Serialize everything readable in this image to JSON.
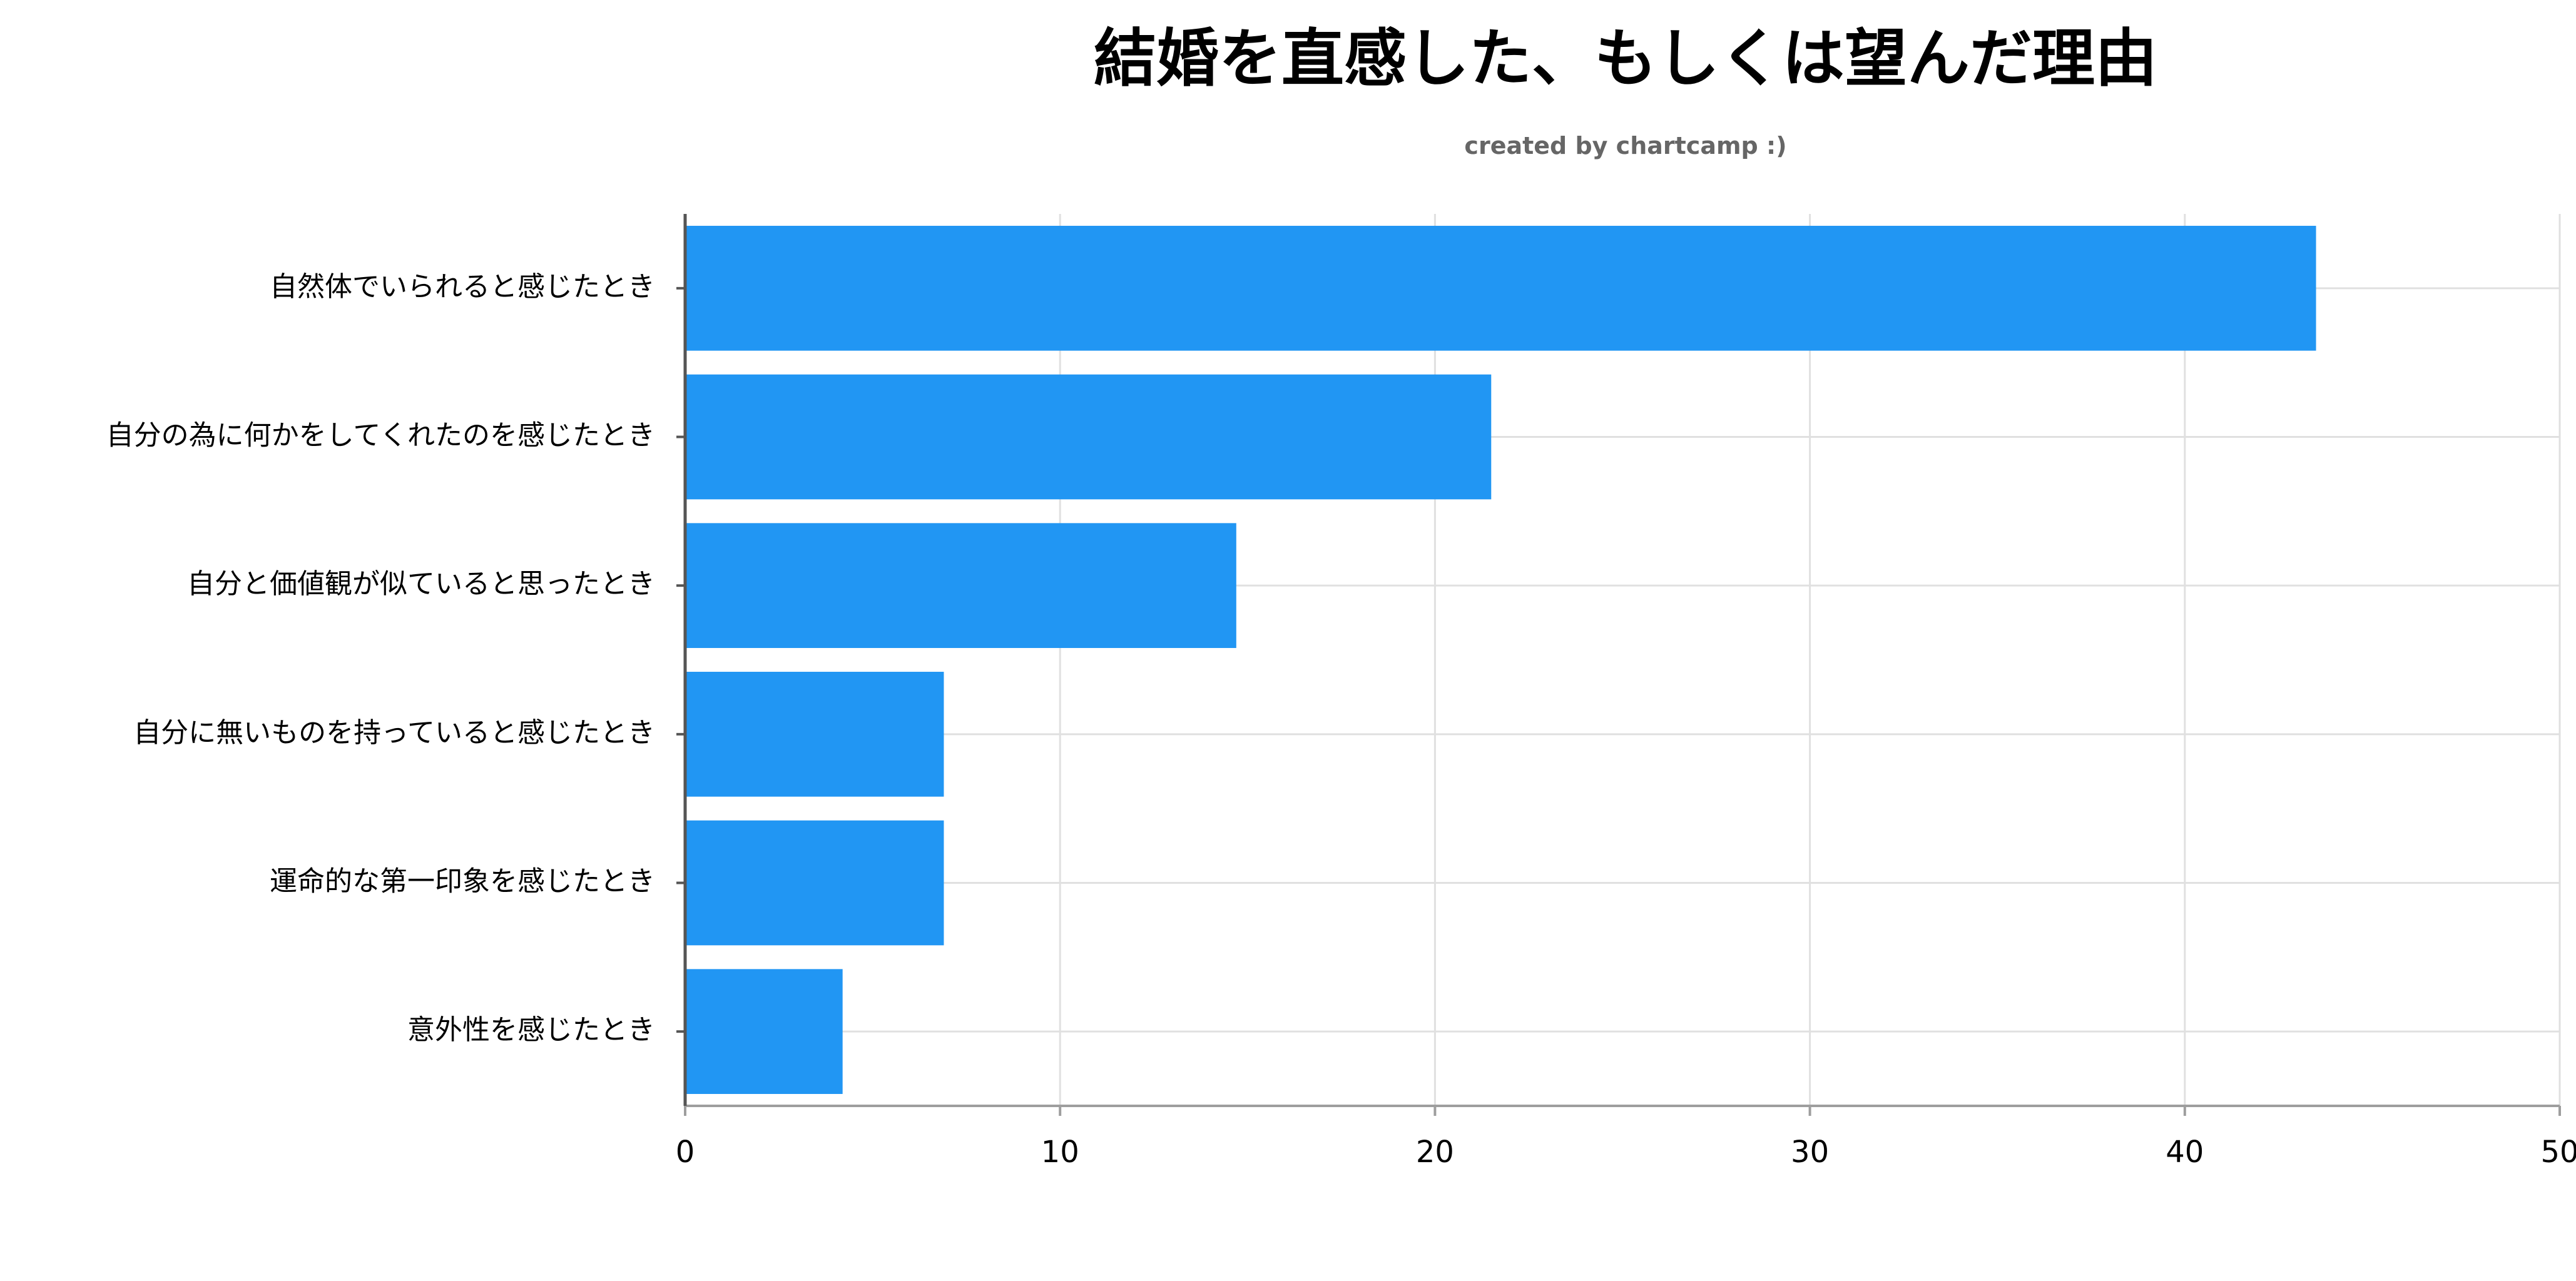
{
  "chart_data": {
    "type": "bar",
    "orientation": "horizontal",
    "title": "結婚を直感した、もしくは望んだ理由",
    "subtitle": "created by chartcamp :)",
    "categories": [
      "自然体でいられると感じたとき",
      "自分の為に何かをしてくれたのを感じたとき",
      "自分と価値観が似ていると思ったとき",
      "自分に無いものを持っていると感じたとき",
      "運命的な第一印象を感じたとき",
      "意外性を感じたとき"
    ],
    "values": [
      43.5,
      21.5,
      14.7,
      6.9,
      6.9,
      4.2
    ],
    "xlim": [
      0,
      50
    ],
    "xticks": [
      0,
      10,
      20,
      30,
      40,
      50
    ],
    "xlabel": "",
    "ylabel": "",
    "grid": true,
    "bar_color": "#2196F3",
    "grid_color": "#e0e0e0",
    "axis_color": "#9e9e9e"
  }
}
